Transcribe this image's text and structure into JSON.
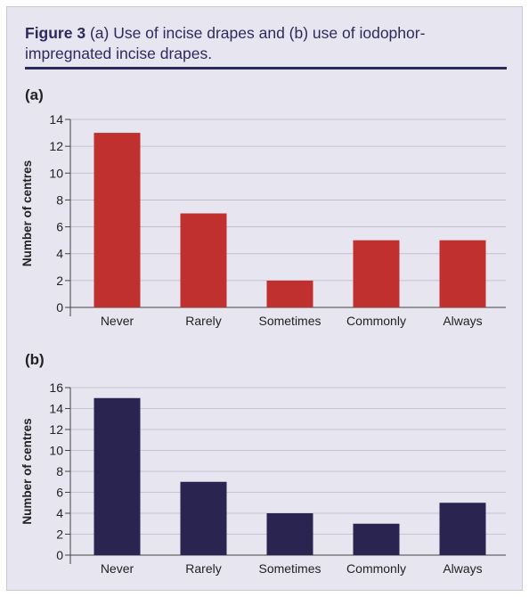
{
  "figure": {
    "label": "Figure 3",
    "caption": "(a) Use of incise drapes and (b) use of iodophor-impregnated incise drapes."
  },
  "colors": {
    "panel_a_bar": "#c0302f",
    "panel_b_bar": "#2a2550",
    "title": "#2e2a5e",
    "background": "#e6e5f0"
  },
  "chart_data": [
    {
      "type": "bar",
      "panel_label": "(a)",
      "categories": [
        "Never",
        "Rarely",
        "Sometimes",
        "Commonly",
        "Always"
      ],
      "values": [
        13,
        7,
        2,
        5,
        5
      ],
      "ylabel": "Number of centres",
      "xlabel": "",
      "ylim": [
        0,
        14
      ],
      "yticks": [
        0,
        2,
        4,
        6,
        8,
        10,
        12,
        14
      ],
      "grid": true
    },
    {
      "type": "bar",
      "panel_label": "(b)",
      "categories": [
        "Never",
        "Rarely",
        "Sometimes",
        "Commonly",
        "Always"
      ],
      "values": [
        15,
        7,
        4,
        3,
        5
      ],
      "ylabel": "Number of centres",
      "xlabel": "",
      "ylim": [
        0,
        16
      ],
      "yticks": [
        0,
        2,
        4,
        6,
        8,
        10,
        12,
        14,
        16
      ],
      "grid": true
    }
  ]
}
